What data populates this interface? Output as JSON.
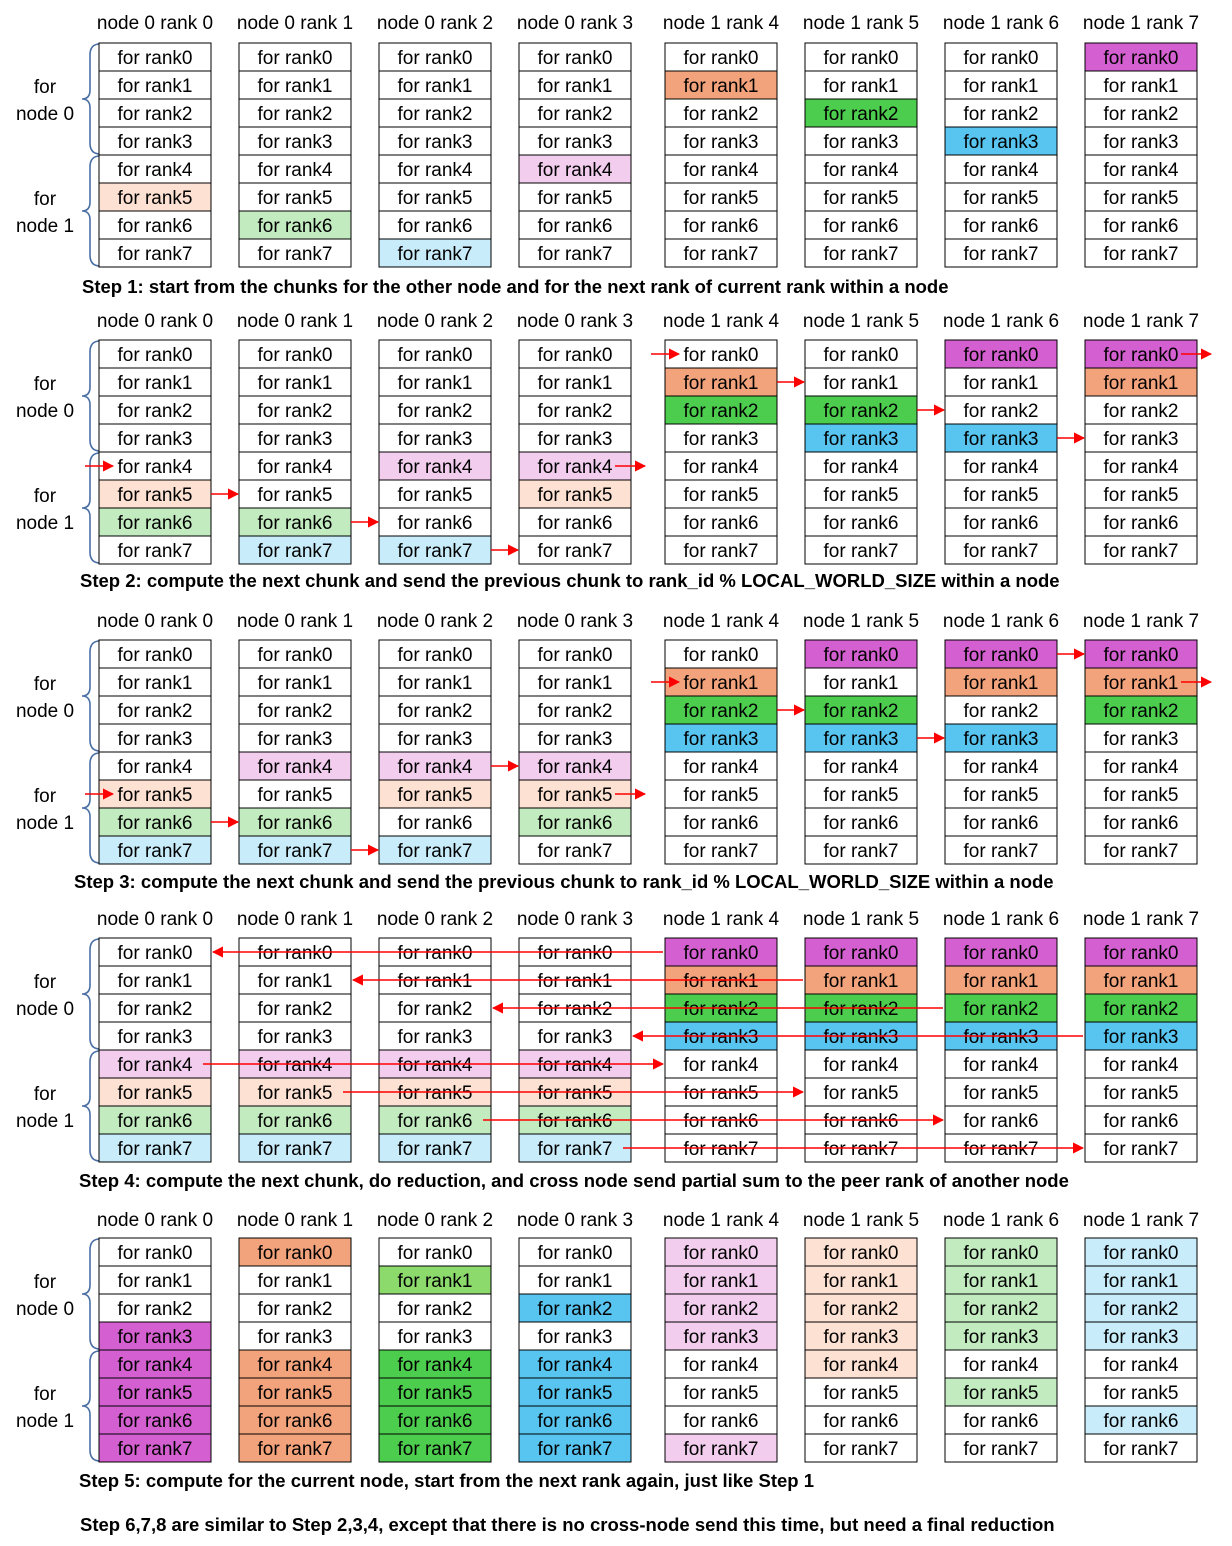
{
  "ranks": [
    "node 0 rank 0",
    "node 0 rank 1",
    "node 0 rank 2",
    "node 0 rank 3",
    "node 1 rank 4",
    "node 1 rank 5",
    "node 1 rank 6",
    "node 1 rank 7"
  ],
  "chunk_labels": [
    "for rank0",
    "for rank1",
    "for rank2",
    "for rank3",
    "for rank4",
    "for rank5",
    "for rank6",
    "for rank7"
  ],
  "group_labels": {
    "node0": [
      "for",
      "node 0"
    ],
    "node1": [
      "for",
      "node 1"
    ]
  },
  "palette": {
    "white": "#ffffff",
    "magenta": "#d45fd0",
    "orange": "#f2a37b",
    "green": "#4dcd4d",
    "green_alt": "#8cd96c",
    "blue": "#58c4f0",
    "pink": "#f2cdee",
    "peach": "#fde1d2",
    "lightgreen": "#c2ebc0",
    "lightblue": "#c9ecfa",
    "arrow": "#ff0000",
    "border": "#000000"
  },
  "steps": [
    {
      "caption": "Step 1: start from the chunks for the other node and for the next rank of current rank within a node",
      "colors": [
        [
          "white",
          "white",
          "white",
          "white",
          "white",
          "peach",
          "white",
          "white"
        ],
        [
          "white",
          "white",
          "white",
          "white",
          "white",
          "white",
          "lightgreen",
          "white"
        ],
        [
          "white",
          "white",
          "white",
          "white",
          "white",
          "white",
          "white",
          "lightblue"
        ],
        [
          "white",
          "white",
          "white",
          "white",
          "pink",
          "white",
          "white",
          "white"
        ],
        [
          "white",
          "orange",
          "white",
          "white",
          "white",
          "white",
          "white",
          "white"
        ],
        [
          "white",
          "white",
          "green",
          "white",
          "white",
          "white",
          "white",
          "white"
        ],
        [
          "white",
          "white",
          "white",
          "blue",
          "white",
          "white",
          "white",
          "white"
        ],
        [
          "magenta",
          "white",
          "white",
          "white",
          "white",
          "white",
          "white",
          "white"
        ]
      ],
      "arrows": []
    },
    {
      "caption": "Step 2: compute the next chunk and send the previous chunk to rank_id % LOCAL_WORLD_SIZE within a node",
      "colors": [
        [
          "white",
          "white",
          "white",
          "white",
          "white",
          "peach",
          "lightgreen",
          "white"
        ],
        [
          "white",
          "white",
          "white",
          "white",
          "white",
          "white",
          "lightgreen",
          "lightblue"
        ],
        [
          "white",
          "white",
          "white",
          "white",
          "pink",
          "white",
          "white",
          "lightblue"
        ],
        [
          "white",
          "white",
          "white",
          "white",
          "pink",
          "peach",
          "white",
          "white"
        ],
        [
          "white",
          "orange",
          "green",
          "white",
          "white",
          "white",
          "white",
          "white"
        ],
        [
          "white",
          "white",
          "green",
          "blue",
          "white",
          "white",
          "white",
          "white"
        ],
        [
          "magenta",
          "white",
          "white",
          "blue",
          "white",
          "white",
          "white",
          "white"
        ],
        [
          "magenta",
          "orange",
          "white",
          "white",
          "white",
          "white",
          "white",
          "white"
        ]
      ],
      "arrows": [
        {
          "kind": "in",
          "col": 0,
          "row": 4
        },
        {
          "kind": "link",
          "col": 0,
          "row": 5
        },
        {
          "kind": "link",
          "col": 1,
          "row": 6
        },
        {
          "kind": "link",
          "col": 2,
          "row": 7
        },
        {
          "kind": "out",
          "col": 3,
          "row": 4
        },
        {
          "kind": "in",
          "col": 4,
          "row": 0
        },
        {
          "kind": "link",
          "col": 4,
          "row": 1
        },
        {
          "kind": "link",
          "col": 5,
          "row": 2
        },
        {
          "kind": "link",
          "col": 6,
          "row": 3
        },
        {
          "kind": "out",
          "col": 7,
          "row": 0
        }
      ]
    },
    {
      "caption": "Step 3: compute the next chunk and send the previous chunk to rank_id % LOCAL_WORLD_SIZE within a node",
      "colors": [
        [
          "white",
          "white",
          "white",
          "white",
          "white",
          "peach",
          "lightgreen",
          "lightblue"
        ],
        [
          "white",
          "white",
          "white",
          "white",
          "pink",
          "white",
          "lightgreen",
          "lightblue"
        ],
        [
          "white",
          "white",
          "white",
          "white",
          "pink",
          "peach",
          "white",
          "lightblue"
        ],
        [
          "white",
          "white",
          "white",
          "white",
          "pink",
          "peach",
          "lightgreen",
          "white"
        ],
        [
          "white",
          "orange",
          "green",
          "blue",
          "white",
          "white",
          "white",
          "white"
        ],
        [
          "magenta",
          "white",
          "green",
          "blue",
          "white",
          "white",
          "white",
          "white"
        ],
        [
          "magenta",
          "orange",
          "white",
          "blue",
          "white",
          "white",
          "white",
          "white"
        ],
        [
          "magenta",
          "orange",
          "green",
          "white",
          "white",
          "white",
          "white",
          "white"
        ]
      ],
      "arrows": [
        {
          "kind": "in",
          "col": 0,
          "row": 5
        },
        {
          "kind": "link",
          "col": 0,
          "row": 6
        },
        {
          "kind": "link",
          "col": 1,
          "row": 7
        },
        {
          "kind": "link",
          "col": 2,
          "row": 4
        },
        {
          "kind": "out",
          "col": 3,
          "row": 5
        },
        {
          "kind": "in",
          "col": 4,
          "row": 1
        },
        {
          "kind": "link",
          "col": 4,
          "row": 2
        },
        {
          "kind": "link",
          "col": 5,
          "row": 3
        },
        {
          "kind": "link",
          "col": 6,
          "row": 0
        },
        {
          "kind": "out",
          "col": 7,
          "row": 1
        }
      ]
    },
    {
      "caption": "Step 4: compute the next chunk, do reduction, and cross node send partial sum to the peer rank of another node",
      "colors": [
        [
          "white",
          "white",
          "white",
          "white",
          "pink",
          "peach",
          "lightgreen",
          "lightblue"
        ],
        [
          "white",
          "white",
          "white",
          "white",
          "pink",
          "peach",
          "lightgreen",
          "lightblue"
        ],
        [
          "white",
          "white",
          "white",
          "white",
          "pink",
          "peach",
          "lightgreen",
          "lightblue"
        ],
        [
          "white",
          "white",
          "white",
          "white",
          "pink",
          "peach",
          "lightgreen",
          "lightblue"
        ],
        [
          "magenta",
          "orange",
          "green",
          "blue",
          "white",
          "white",
          "white",
          "white"
        ],
        [
          "magenta",
          "orange",
          "green",
          "blue",
          "white",
          "white",
          "white",
          "white"
        ],
        [
          "magenta",
          "orange",
          "green",
          "blue",
          "white",
          "white",
          "white",
          "white"
        ],
        [
          "magenta",
          "orange",
          "green",
          "blue",
          "white",
          "white",
          "white",
          "white"
        ]
      ],
      "arrows": [
        {
          "kind": "cross",
          "from_col": 4,
          "to_col": 0,
          "row": 0
        },
        {
          "kind": "cross",
          "from_col": 5,
          "to_col": 1,
          "row": 1
        },
        {
          "kind": "cross",
          "from_col": 6,
          "to_col": 2,
          "row": 2
        },
        {
          "kind": "cross",
          "from_col": 7,
          "to_col": 3,
          "row": 3
        },
        {
          "kind": "cross",
          "from_col": 0,
          "to_col": 4,
          "row": 4
        },
        {
          "kind": "cross",
          "from_col": 1,
          "to_col": 5,
          "row": 5
        },
        {
          "kind": "cross",
          "from_col": 2,
          "to_col": 6,
          "row": 6
        },
        {
          "kind": "cross",
          "from_col": 3,
          "to_col": 7,
          "row": 7
        }
      ]
    },
    {
      "caption": "Step 5: compute for the current node, start from the next rank again, just like Step 1",
      "colors": [
        [
          "white",
          "white",
          "white",
          "magenta",
          "magenta",
          "magenta",
          "magenta",
          "magenta"
        ],
        [
          "orange",
          "white",
          "white",
          "white",
          "orange",
          "orange",
          "orange",
          "orange"
        ],
        [
          "white",
          "green_alt",
          "white",
          "white",
          "green",
          "green",
          "green",
          "green"
        ],
        [
          "white",
          "white",
          "blue",
          "white",
          "blue",
          "blue",
          "blue",
          "blue"
        ],
        [
          "pink",
          "pink",
          "pink",
          "pink",
          "white",
          "white",
          "white",
          "pink"
        ],
        [
          "peach",
          "peach",
          "peach",
          "peach",
          "peach",
          "white",
          "white",
          "white"
        ],
        [
          "lightgreen",
          "lightgreen",
          "lightgreen",
          "lightgreen",
          "white",
          "lightgreen",
          "white",
          "white"
        ],
        [
          "lightblue",
          "lightblue",
          "lightblue",
          "lightblue",
          "white",
          "white",
          "lightblue",
          "white"
        ]
      ],
      "arrows": []
    }
  ],
  "footer": "Step 6,7,8 are similar to Step 2,3,4, except that there is no cross-node send this time, but need a final reduction"
}
